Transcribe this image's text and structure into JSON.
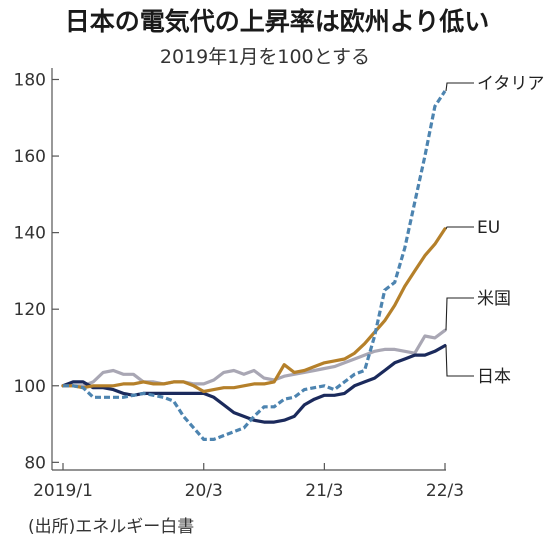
{
  "chart_data": {
    "type": "line",
    "title": "日本の電気代の上昇率は欧州より低い",
    "subtitle": "2019年1月を100とする",
    "source": "(出所)エネルギー白書",
    "xlabel": "",
    "ylabel": "",
    "ylim": [
      78,
      183
    ],
    "yticks": [
      80,
      100,
      120,
      140,
      160,
      180
    ],
    "x": [
      "2019/1",
      "2019/2",
      "2019/3",
      "2019/4",
      "2019/5",
      "2019/6",
      "2019/7",
      "2019/8",
      "2019/9",
      "2019/10",
      "2019/11",
      "2019/12",
      "2020/1",
      "2020/2",
      "2020/3",
      "2020/4",
      "2020/5",
      "2020/6",
      "2020/7",
      "2020/8",
      "2020/9",
      "2020/10",
      "2020/11",
      "2020/12",
      "2021/1",
      "2021/2",
      "2021/3",
      "2021/4",
      "2021/5",
      "2021/6",
      "2021/7",
      "2021/8",
      "2021/9",
      "2021/10",
      "2021/11",
      "2021/12",
      "2022/1",
      "2022/2",
      "2022/3"
    ],
    "xticks": [
      {
        "x": "2019/1",
        "label": "2019/1"
      },
      {
        "x": "2020/3",
        "label": "20/3"
      },
      {
        "x": "2021/3",
        "label": "21/3"
      },
      {
        "x": "2022/3",
        "label": "22/3"
      }
    ],
    "series": [
      {
        "name": "米国",
        "color": "#a9a7b4",
        "dash": "solid",
        "values": [
          100,
          100,
          100,
          101,
          103.5,
          104,
          103,
          103,
          101,
          101,
          100.5,
          101,
          101,
          100.5,
          100.5,
          101.5,
          103.5,
          104,
          103,
          104,
          102,
          101.5,
          102.5,
          103,
          103.5,
          104,
          104.5,
          105,
          106,
          107,
          108,
          109,
          109.5,
          109.5,
          109,
          108.5,
          113,
          112.5,
          114.5
        ]
      },
      {
        "name": "日本",
        "color": "#1b2a5c",
        "dash": "solid",
        "values": [
          100,
          101,
          101,
          99.5,
          99.5,
          99,
          98,
          97.5,
          98,
          98,
          98,
          98,
          98,
          98,
          98,
          97,
          95,
          93,
          92,
          91,
          90.5,
          90.5,
          91,
          92,
          95,
          96.5,
          97.5,
          97.5,
          98,
          100,
          101,
          102,
          104,
          106,
          107,
          108,
          108,
          109,
          110.5
        ]
      },
      {
        "name": "EU",
        "color": "#b5802a",
        "dash": "solid",
        "values": [
          100,
          100,
          99.5,
          100,
          100,
          100,
          100.5,
          100.5,
          101,
          100.5,
          100.5,
          101,
          101,
          100,
          98.5,
          99,
          99.5,
          99.5,
          100,
          100.5,
          100.5,
          101,
          105.5,
          103.5,
          104,
          105,
          106,
          106.5,
          107,
          108.5,
          111,
          114,
          117,
          121,
          126,
          130,
          134,
          137,
          141
        ]
      },
      {
        "name": "イタリア",
        "color": "#4d84b0",
        "dash": "dashed",
        "values": [
          100,
          100,
          99.5,
          97,
          97,
          97,
          97,
          97.5,
          98,
          97.5,
          97,
          96,
          92,
          89,
          86,
          86,
          87,
          88,
          89,
          92,
          94.5,
          94.5,
          96.5,
          97,
          99,
          99.5,
          100,
          99,
          101,
          103,
          104,
          113,
          125,
          127,
          136,
          148,
          160,
          173,
          177
        ]
      }
    ],
    "legend": [
      {
        "label": "イタリア",
        "series": "イタリア"
      },
      {
        "label": "EU",
        "series": "EU"
      },
      {
        "label": "米国",
        "series": "米国"
      },
      {
        "label": "日本",
        "series": "日本"
      }
    ],
    "grid": false
  }
}
